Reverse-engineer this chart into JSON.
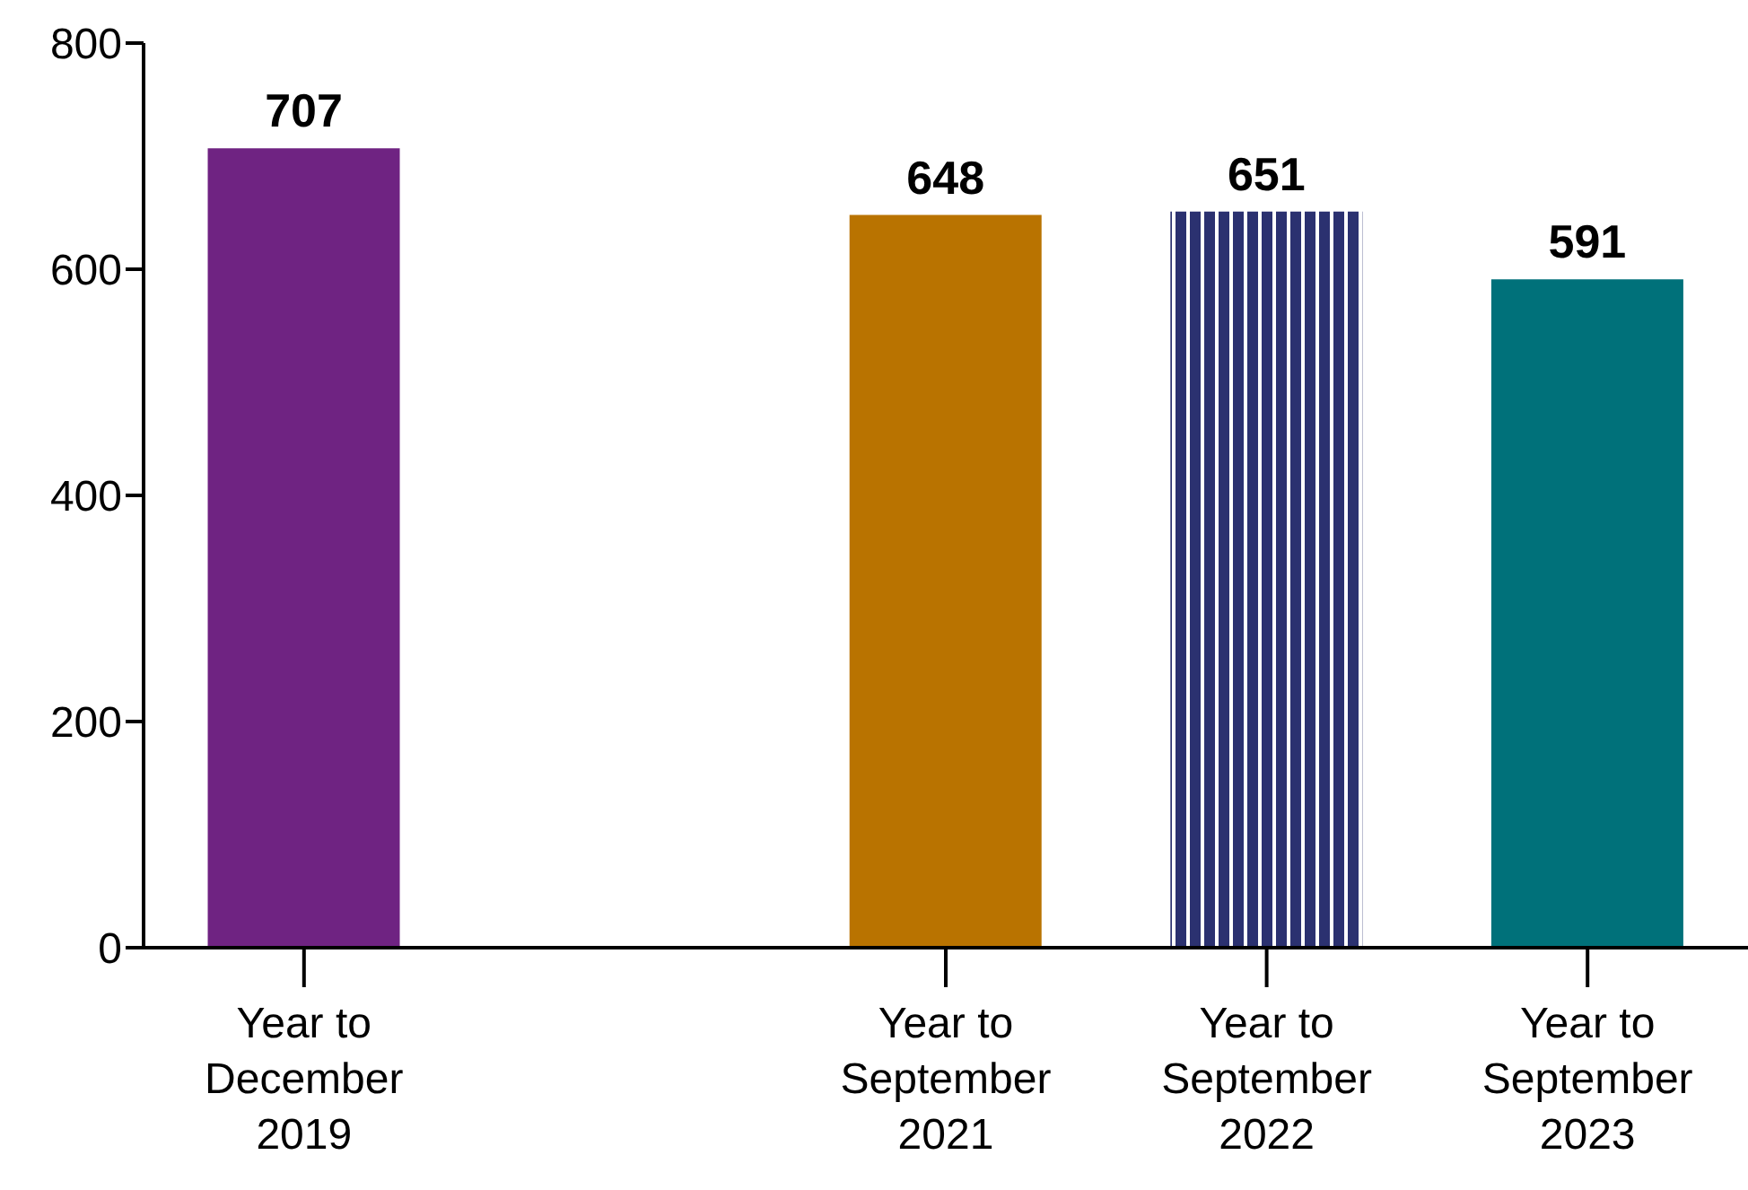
{
  "chart_data": {
    "type": "bar",
    "categories": [
      "Year to December 2019",
      null,
      "Year to September 2021",
      "Year to September 2022",
      "Year to September 2023"
    ],
    "values": [
      707,
      null,
      648,
      651,
      591
    ],
    "colors": [
      "#6f2382",
      "#ffffff",
      "#b97300",
      "#2b3170",
      "#00717a"
    ],
    "ylim": [
      0,
      800
    ],
    "yticks": [
      0,
      200,
      400,
      600,
      800
    ],
    "grid": false,
    "data_labels": true
  }
}
